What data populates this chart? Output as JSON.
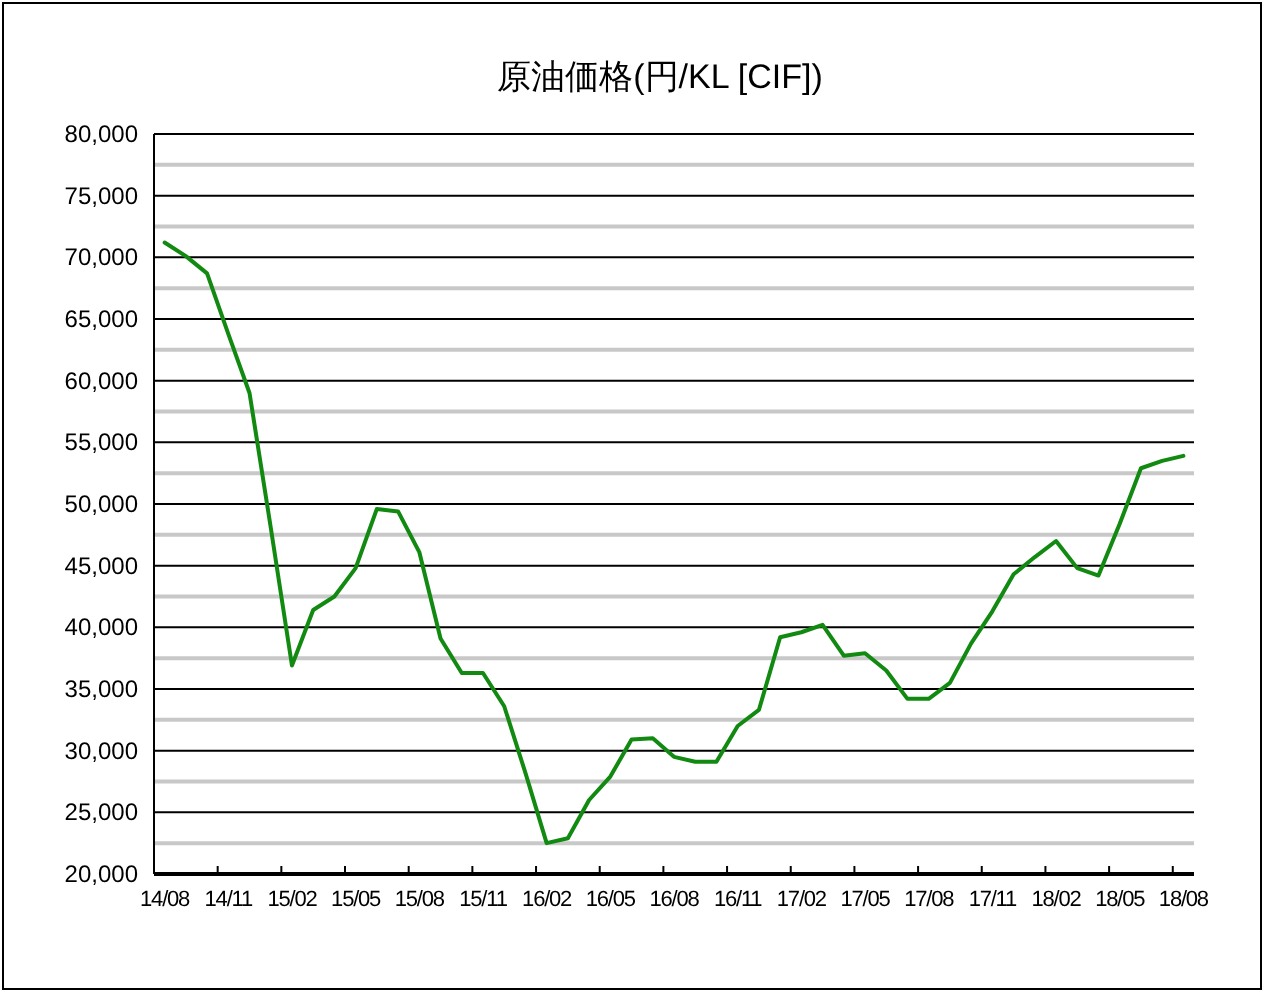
{
  "chart_data": {
    "type": "line",
    "title": "原油価格(円/KL [CIF])",
    "categories": [
      "14/08",
      null,
      null,
      "14/11",
      null,
      null,
      "15/02",
      null,
      null,
      "15/05",
      null,
      null,
      "15/08",
      null,
      null,
      "15/11",
      null,
      null,
      "16/02",
      null,
      null,
      "16/05",
      null,
      null,
      "16/08",
      null,
      null,
      "16/11",
      null,
      null,
      "17/02",
      null,
      null,
      "17/05",
      null,
      null,
      "17/08",
      null,
      null,
      "17/11",
      null,
      null,
      "18/02",
      null,
      null,
      "18/05",
      null,
      null,
      "18/08"
    ],
    "series": [
      {
        "color": "#128a12",
        "values": [
          71200,
          70100,
          68700,
          63800,
          59000,
          48100,
          36900,
          41400,
          42500,
          44800,
          49600,
          49400,
          46100,
          39100,
          36300,
          36300,
          33600,
          28200,
          22500,
          22900,
          26000,
          27900,
          30900,
          31000,
          29500,
          29100,
          29100,
          32000,
          33300,
          39200,
          39600,
          40200,
          37700,
          37900,
          36500,
          34200,
          34200,
          35500,
          38700,
          41300,
          44300,
          45700,
          47000,
          44800,
          44200,
          48400,
          52900,
          53500,
          53900
        ]
      }
    ],
    "ylim": [
      20000,
      80000
    ],
    "yticks": [
      {
        "value": 20000,
        "label": "20,000"
      },
      {
        "value": 22500,
        "label": null
      },
      {
        "value": 25000,
        "label": "25,000"
      },
      {
        "value": 27500,
        "label": null
      },
      {
        "value": 30000,
        "label": "30,000"
      },
      {
        "value": 32500,
        "label": null
      },
      {
        "value": 35000,
        "label": "35,000"
      },
      {
        "value": 37500,
        "label": null
      },
      {
        "value": 40000,
        "label": "40,000"
      },
      {
        "value": 42500,
        "label": null
      },
      {
        "value": 45000,
        "label": "45,000"
      },
      {
        "value": 47500,
        "label": null
      },
      {
        "value": 50000,
        "label": "50,000"
      },
      {
        "value": 52500,
        "label": null
      },
      {
        "value": 55000,
        "label": "55,000"
      },
      {
        "value": 57500,
        "label": null
      },
      {
        "value": 60000,
        "label": "60,000"
      },
      {
        "value": 62500,
        "label": null
      },
      {
        "value": 65000,
        "label": "65,000"
      },
      {
        "value": 67500,
        "label": null
      },
      {
        "value": 70000,
        "label": "70,000"
      },
      {
        "value": 72500,
        "label": null
      },
      {
        "value": 75000,
        "label": "75,000"
      },
      {
        "value": 77500,
        "label": null
      },
      {
        "value": 80000,
        "label": "80,000"
      }
    ],
    "grid": "y",
    "marker": "none",
    "line_style": "solid"
  }
}
